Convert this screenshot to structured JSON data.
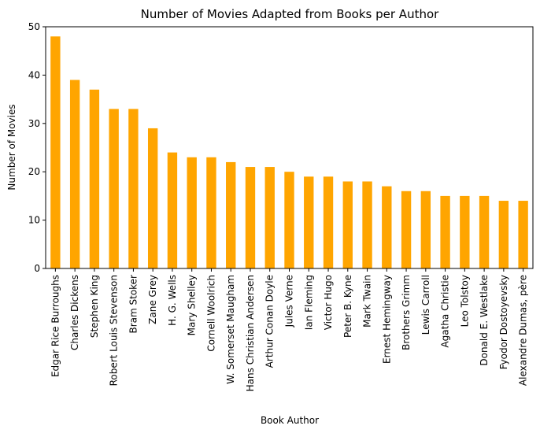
{
  "chart_data": {
    "type": "bar",
    "title": "Number of Movies Adapted from Books per Author",
    "xlabel": "Book Author",
    "ylabel": "Number of Movies",
    "ylim": [
      0,
      50
    ],
    "yticks": [
      0,
      10,
      20,
      30,
      40,
      50
    ],
    "grid": false,
    "bar_color": "#FFA500",
    "categories": [
      "Edgar Rice Burroughs",
      "Charles Dickens",
      "Stephen King",
      "Robert Louis Stevenson",
      "Bram Stoker",
      "Zane Grey",
      "H. G. Wells",
      "Mary Shelley",
      "Cornell Woolrich",
      "W. Somerset Maugham",
      "Hans Christian Andersen",
      "Arthur Conan Doyle",
      "Jules Verne",
      "Ian Fleming",
      "Victor Hugo",
      "Peter B. Kyne",
      "Mark Twain",
      "Ernest Hemingway",
      "Brothers Grimm",
      "Lewis Carroll",
      "Agatha Christie",
      "Leo Tolstoy",
      "Donald E. Westlake",
      "Fyodor Dostoyevsky",
      "Alexandre Dumas, père"
    ],
    "values": [
      48,
      39,
      37,
      33,
      33,
      29,
      24,
      23,
      23,
      22,
      21,
      21,
      20,
      19,
      19,
      18,
      18,
      17,
      16,
      16,
      15,
      15,
      15,
      14,
      14
    ]
  }
}
